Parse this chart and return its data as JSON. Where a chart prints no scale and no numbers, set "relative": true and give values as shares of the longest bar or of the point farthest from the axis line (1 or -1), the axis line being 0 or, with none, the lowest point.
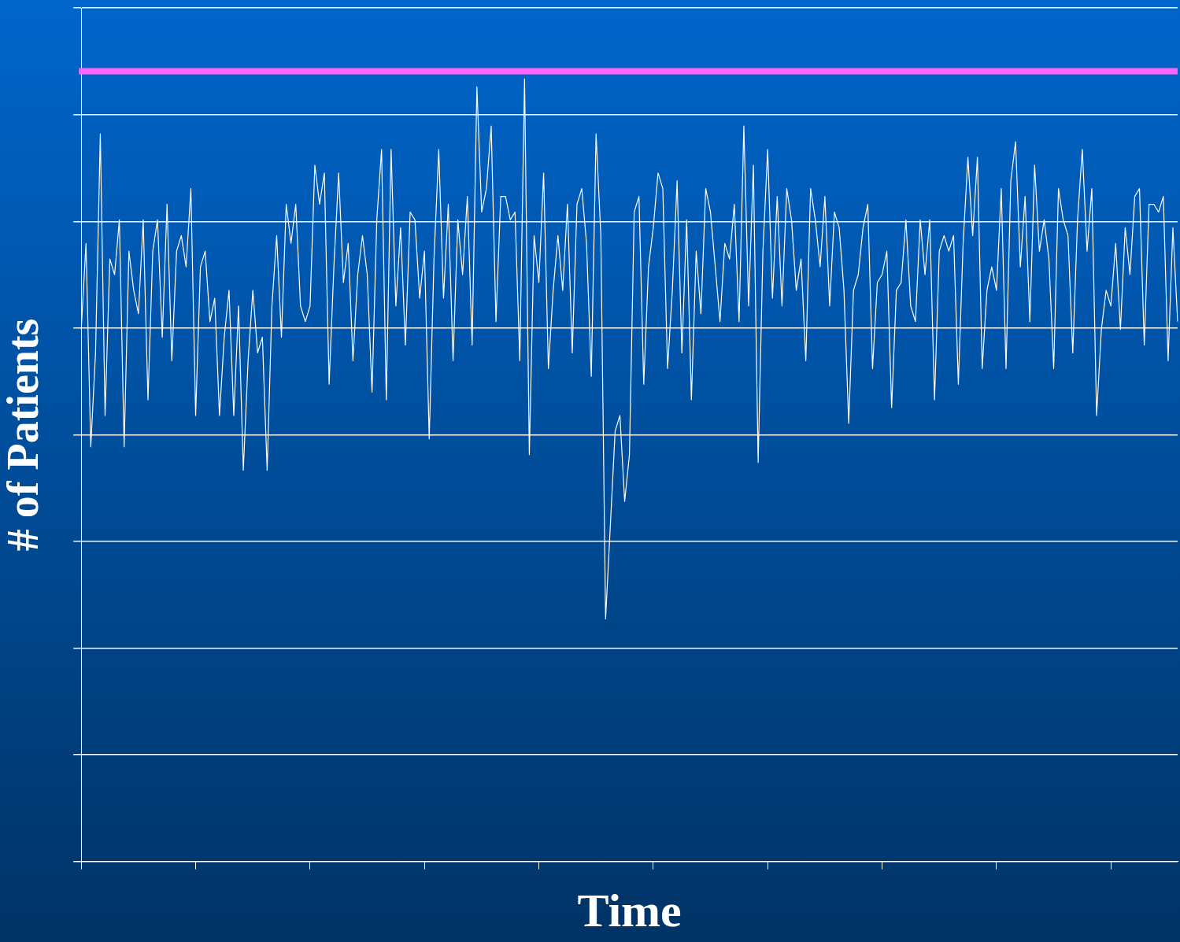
{
  "chart_data": {
    "type": "line",
    "relative": true,
    "xlabel": "Time",
    "ylabel": "# of Patients",
    "grid": "y",
    "marker": "none",
    "line_style": "solid",
    "color": "#ffffff",
    "categories": [
      null,
      null,
      null,
      null,
      null,
      null,
      null,
      null,
      null,
      null,
      null,
      null,
      null,
      null,
      null,
      null,
      null,
      null,
      null,
      null,
      null,
      null,
      null,
      null,
      null,
      null,
      null,
      null,
      null,
      null,
      null,
      null,
      null,
      null,
      null,
      null,
      null,
      null,
      null,
      null,
      null,
      null,
      null,
      null,
      null,
      null,
      null,
      null,
      null,
      null,
      null,
      null,
      null,
      null,
      null,
      null,
      null,
      null,
      null,
      null,
      null,
      null,
      null,
      null,
      null,
      null,
      null,
      null,
      null,
      null,
      null,
      null,
      null,
      null,
      null,
      null,
      null,
      null,
      null,
      null,
      null,
      null,
      null,
      null,
      null,
      null,
      null,
      null,
      null,
      null,
      null,
      null,
      null,
      null,
      null,
      null,
      null,
      null,
      null,
      null,
      null,
      null,
      null,
      null,
      null,
      null,
      null,
      null,
      null,
      null,
      null,
      null,
      null,
      null,
      null,
      null,
      null,
      null,
      null,
      null,
      null,
      null,
      null,
      null,
      null,
      null,
      null,
      null,
      null,
      null,
      null,
      null,
      null,
      null,
      null,
      null,
      null,
      null,
      null,
      null,
      null,
      null,
      null,
      null,
      null,
      null,
      null,
      null,
      null,
      null,
      null,
      null,
      null,
      null,
      null,
      null,
      null,
      null,
      null,
      null,
      null,
      null,
      null,
      null,
      null,
      null,
      null,
      null,
      null,
      null,
      null,
      null,
      null,
      null,
      null,
      null,
      null,
      null,
      null,
      null,
      null,
      null,
      null,
      null,
      null,
      null,
      null,
      null,
      null,
      null,
      null,
      null,
      null,
      null,
      null,
      null,
      null,
      null,
      null,
      null,
      null,
      null,
      null,
      null,
      null,
      null,
      null,
      null,
      null,
      null,
      null,
      null,
      null,
      null,
      null,
      null,
      null,
      null,
      null,
      null,
      null,
      null,
      null,
      null,
      null,
      null,
      null,
      null,
      null,
      null,
      null
    ],
    "values": [
      0.68,
      0.79,
      0.53,
      0.65,
      0.93,
      0.57,
      0.77,
      0.75,
      0.82,
      0.53,
      0.78,
      0.73,
      0.7,
      0.82,
      0.59,
      0.78,
      0.82,
      0.67,
      0.84,
      0.64,
      0.78,
      0.8,
      0.76,
      0.86,
      0.57,
      0.76,
      0.78,
      0.69,
      0.72,
      0.57,
      0.67,
      0.73,
      0.57,
      0.71,
      0.5,
      0.64,
      0.73,
      0.65,
      0.67,
      0.5,
      0.71,
      0.8,
      0.67,
      0.84,
      0.79,
      0.84,
      0.71,
      0.69,
      0.71,
      0.89,
      0.84,
      0.88,
      0.61,
      0.76,
      0.88,
      0.74,
      0.79,
      0.64,
      0.75,
      0.8,
      0.75,
      0.6,
      0.82,
      0.91,
      0.59,
      0.91,
      0.71,
      0.81,
      0.66,
      0.83,
      0.82,
      0.72,
      0.78,
      0.54,
      0.77,
      0.91,
      0.72,
      0.84,
      0.64,
      0.82,
      0.75,
      0.85,
      0.66,
      0.99,
      0.83,
      0.86,
      0.94,
      0.69,
      0.85,
      0.85,
      0.82,
      0.83,
      0.64,
      1,
      0.52,
      0.8,
      0.74,
      0.88,
      0.63,
      0.73,
      0.8,
      0.73,
      0.84,
      0.65,
      0.84,
      0.86,
      0.79,
      0.62,
      0.93,
      0.8,
      0.31,
      0.43,
      0.55,
      0.57,
      0.46,
      0.52,
      0.83,
      0.85,
      0.61,
      0.76,
      0.81,
      0.88,
      0.86,
      0.63,
      0.73,
      0.87,
      0.65,
      0.82,
      0.59,
      0.78,
      0.7,
      0.86,
      0.83,
      0.76,
      0.69,
      0.79,
      0.77,
      0.84,
      0.69,
      0.94,
      0.71,
      0.89,
      0.51,
      0.78,
      0.91,
      0.72,
      0.85,
      0.71,
      0.86,
      0.82,
      0.73,
      0.77,
      0.64,
      0.86,
      0.82,
      0.76,
      0.85,
      0.71,
      0.83,
      0.81,
      0.73,
      0.56,
      0.73,
      0.75,
      0.81,
      0.84,
      0.63,
      0.74,
      0.75,
      0.78,
      0.58,
      0.73,
      0.74,
      0.82,
      0.71,
      0.69,
      0.82,
      0.75,
      0.82,
      0.59,
      0.78,
      0.8,
      0.78,
      0.8,
      0.61,
      0.79,
      0.9,
      0.8,
      0.9,
      0.63,
      0.73,
      0.76,
      0.73,
      0.86,
      0.63,
      0.87,
      0.92,
      0.76,
      0.85,
      0.69,
      0.89,
      0.78,
      0.82,
      0.77,
      0.63,
      0.86,
      0.82,
      0.8,
      0.65,
      0.82,
      0.91,
      0.78,
      0.86,
      0.57,
      0.68,
      0.73,
      0.71,
      0.79,
      0.68,
      0.81,
      0.75,
      0.85,
      0.86,
      0.66,
      0.84,
      0.84,
      0.83,
      0.85,
      0.64,
      0.81,
      0.69
    ],
    "ref_lines": [
      {
        "axis": "y",
        "value": 1.01,
        "color": "#ff66ff"
      }
    ]
  }
}
